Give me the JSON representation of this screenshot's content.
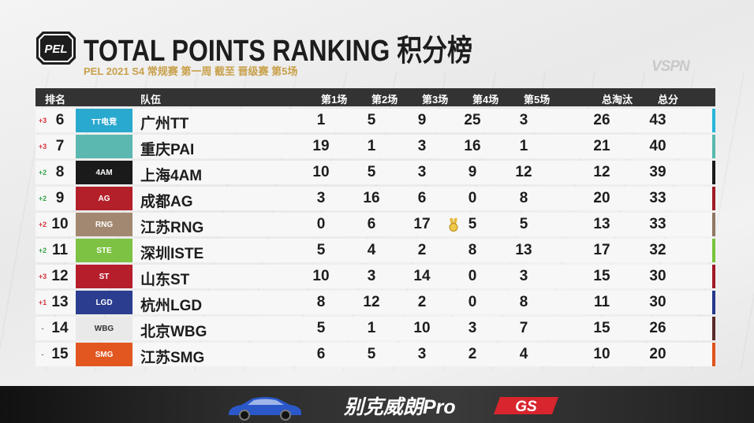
{
  "header": {
    "title": "TOTAL POINTS RANKING 积分榜",
    "subtitle": "PEL 2021 S4 常规赛 第一周 截至 晋级赛 第5场",
    "logo_text": "PEL",
    "watermark": "VSPN"
  },
  "table": {
    "columns": {
      "rank": "排名",
      "team": "队伍",
      "m1": "第1场",
      "m2": "第2场",
      "m3": "第3场",
      "m4": "第4场",
      "m5": "第5场",
      "kills": "总淘汰",
      "total": "总分"
    },
    "rows": [
      {
        "change": "+3",
        "rank": "6",
        "logo_text": "TT电竞",
        "team": "广州TT",
        "m1": "1",
        "m2": "5",
        "m3": "9",
        "m4": "25",
        "m5": "3",
        "kills": "26",
        "total": "43",
        "logo_color": "#2aa9cf",
        "stripe": "#29b6d8"
      },
      {
        "change": "+3",
        "rank": "7",
        "logo_text": "",
        "team": "重庆PAI",
        "m1": "19",
        "m2": "1",
        "m3": "3",
        "m4": "16",
        "m5": "1",
        "kills": "21",
        "total": "40",
        "logo_color": "#5bb8b0",
        "stripe": "#57b9b0"
      },
      {
        "change": "+2",
        "rank": "8",
        "logo_text": "4AM",
        "team": "上海4AM",
        "m1": "10",
        "m2": "5",
        "m3": "3",
        "m4": "9",
        "m5": "12",
        "kills": "12",
        "total": "39",
        "logo_color": "#1a1a1a",
        "stripe": "#1a1a1a"
      },
      {
        "change": "+2",
        "rank": "9",
        "logo_text": "AG",
        "team": "成都AG",
        "m1": "3",
        "m2": "16",
        "m3": "6",
        "m4": "0",
        "m5": "8",
        "kills": "20",
        "total": "33",
        "logo_color": "#b3202a",
        "stripe": "#9e1b25"
      },
      {
        "change": "+2",
        "rank": "10",
        "logo_text": "RNG",
        "team": "江苏RNG",
        "m1": "0",
        "m2": "6",
        "m3": "17",
        "m4": "5",
        "m5": "5",
        "kills": "13",
        "total": "33",
        "logo_color": "#a28870",
        "stripe": "#8f7763",
        "medal": true
      },
      {
        "change": "+2",
        "rank": "11",
        "logo_text": "STE",
        "team": "深圳ISTE",
        "m1": "5",
        "m2": "4",
        "m3": "2",
        "m4": "8",
        "m5": "13",
        "kills": "17",
        "total": "32",
        "logo_color": "#7dc243",
        "stripe": "#78c33b"
      },
      {
        "change": "+3",
        "rank": "12",
        "logo_text": "ST",
        "team": "山东ST",
        "m1": "10",
        "m2": "3",
        "m3": "14",
        "m4": "0",
        "m5": "3",
        "kills": "15",
        "total": "30",
        "logo_color": "#b61e2c",
        "stripe": "#a11a27"
      },
      {
        "change": "+1",
        "rank": "13",
        "logo_text": "LGD",
        "team": "杭州LGD",
        "m1": "8",
        "m2": "12",
        "m3": "2",
        "m4": "0",
        "m5": "8",
        "kills": "11",
        "total": "30",
        "logo_color": "#2a3d8f",
        "stripe": "#26378a"
      },
      {
        "change": "-",
        "rank": "14",
        "logo_text": "WBG",
        "team": "北京WBG",
        "m1": "5",
        "m2": "1",
        "m3": "10",
        "m4": "3",
        "m5": "7",
        "kills": "15",
        "total": "26",
        "logo_color": "#e9e9e9",
        "stripe": "#5a2a2a"
      },
      {
        "change": "-",
        "rank": "15",
        "logo_text": "SMG",
        "team": "江苏SMG",
        "m1": "6",
        "m2": "5",
        "m3": "3",
        "m4": "2",
        "m5": "4",
        "kills": "10",
        "total": "20",
        "logo_color": "#e2571f",
        "stripe": "#e0531b"
      }
    ]
  },
  "sponsor": {
    "text": "别克威朗Pro",
    "badge": "GS"
  },
  "colors": {
    "header_bg": "#333333",
    "subtitle": "#c8a04a",
    "up": "#d6323a",
    "up_alt": "#3aa34a",
    "neutral": "#777777"
  }
}
